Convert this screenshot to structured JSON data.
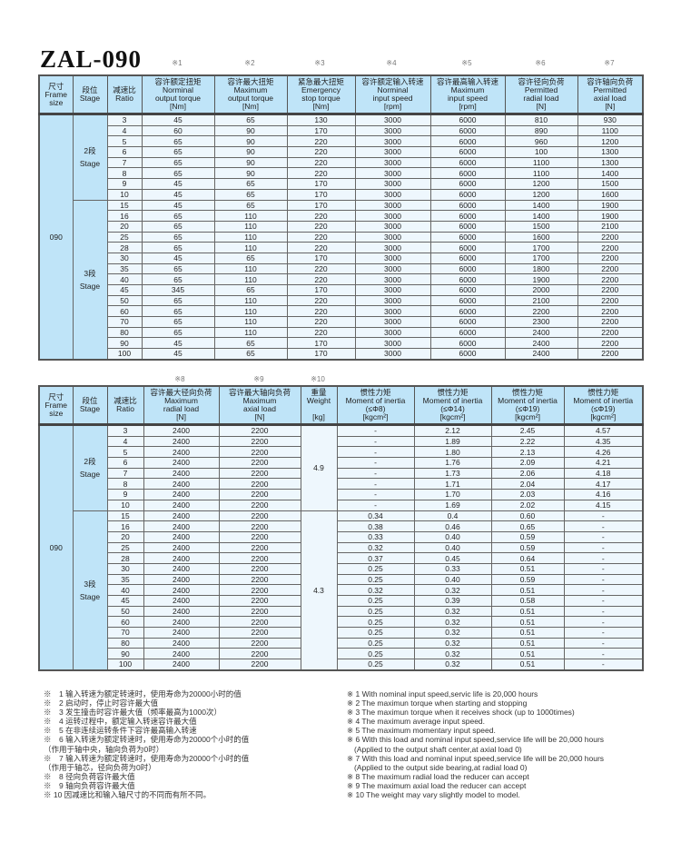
{
  "title": "ZAL-090",
  "table1": {
    "note_marks": [
      "※1",
      "※2",
      "※3",
      "※4",
      "※5",
      "※6",
      "※7"
    ],
    "headers": [
      {
        "zh": "尺寸",
        "en": [
          "Frame",
          "size"
        ]
      },
      {
        "zh": "段位",
        "en": [
          "Stage"
        ]
      },
      {
        "zh": "减速比",
        "en": [
          "Ratio"
        ]
      },
      {
        "zh": "容许额定扭矩",
        "en": [
          "Norminal",
          "output torque",
          "[Nm]"
        ]
      },
      {
        "zh": "容许最大扭矩",
        "en": [
          "Maximum",
          "output torque",
          "[Nm]"
        ]
      },
      {
        "zh": "紧急最大扭矩",
        "en": [
          "Emergency",
          "stop torque",
          "[Nm]"
        ]
      },
      {
        "zh": "容许额定输入转速",
        "en": [
          "Norminal",
          "input speed",
          "[rpm]"
        ]
      },
      {
        "zh": "容许最高输入转速",
        "en": [
          "Maximum",
          "input speed",
          "[rpm]"
        ]
      },
      {
        "zh": "容许径向负荷",
        "en": [
          "Permitted",
          "radial load",
          "[N]"
        ]
      },
      {
        "zh": "容许轴向负荷",
        "en": [
          "Permitted",
          "axial load",
          "[N]"
        ]
      }
    ],
    "frame": "090",
    "stages": [
      {
        "zh": "2段",
        "en": "Stage",
        "rows": 8
      },
      {
        "zh": "3段",
        "en": "Stage",
        "rows": 15
      }
    ],
    "rows": [
      [
        "3",
        "45",
        "65",
        "130",
        "3000",
        "6000",
        "810",
        "930"
      ],
      [
        "4",
        "60",
        "90",
        "170",
        "3000",
        "6000",
        "890",
        "1100"
      ],
      [
        "5",
        "65",
        "90",
        "220",
        "3000",
        "6000",
        "960",
        "1200"
      ],
      [
        "6",
        "65",
        "90",
        "220",
        "3000",
        "6000",
        "100",
        "1300"
      ],
      [
        "7",
        "65",
        "90",
        "220",
        "3000",
        "6000",
        "1100",
        "1300"
      ],
      [
        "8",
        "65",
        "90",
        "220",
        "3000",
        "6000",
        "1100",
        "1400"
      ],
      [
        "9",
        "45",
        "65",
        "170",
        "3000",
        "6000",
        "1200",
        "1500"
      ],
      [
        "10",
        "45",
        "65",
        "170",
        "3000",
        "6000",
        "1200",
        "1600"
      ],
      [
        "15",
        "45",
        "65",
        "170",
        "3000",
        "6000",
        "1400",
        "1900"
      ],
      [
        "16",
        "65",
        "110",
        "220",
        "3000",
        "6000",
        "1400",
        "1900"
      ],
      [
        "20",
        "65",
        "110",
        "220",
        "3000",
        "6000",
        "1500",
        "2100"
      ],
      [
        "25",
        "65",
        "110",
        "220",
        "3000",
        "6000",
        "1600",
        "2200"
      ],
      [
        "28",
        "65",
        "110",
        "220",
        "3000",
        "6000",
        "1700",
        "2200"
      ],
      [
        "30",
        "45",
        "65",
        "170",
        "3000",
        "6000",
        "1700",
        "2200"
      ],
      [
        "35",
        "65",
        "110",
        "220",
        "3000",
        "6000",
        "1800",
        "2200"
      ],
      [
        "40",
        "65",
        "110",
        "220",
        "3000",
        "6000",
        "1900",
        "2200"
      ],
      [
        "45",
        "345",
        "65",
        "170",
        "3000",
        "6000",
        "2000",
        "2200"
      ],
      [
        "50",
        "65",
        "110",
        "220",
        "3000",
        "6000",
        "2100",
        "2200"
      ],
      [
        "60",
        "65",
        "110",
        "220",
        "3000",
        "6000",
        "2200",
        "2200"
      ],
      [
        "70",
        "65",
        "110",
        "220",
        "3000",
        "6000",
        "2300",
        "2200"
      ],
      [
        "80",
        "65",
        "110",
        "220",
        "3000",
        "6000",
        "2400",
        "2200"
      ],
      [
        "90",
        "45",
        "65",
        "170",
        "3000",
        "6000",
        "2400",
        "2200"
      ],
      [
        "100",
        "45",
        "65",
        "170",
        "3000",
        "6000",
        "2400",
        "2200"
      ]
    ]
  },
  "table2": {
    "note_marks": [
      "※8",
      "※9",
      "※10"
    ],
    "headers": [
      {
        "zh": "尺寸",
        "en": [
          "Frame",
          "size"
        ]
      },
      {
        "zh": "段位",
        "en": [
          "Stage"
        ]
      },
      {
        "zh": "减速比",
        "en": [
          "Ratio"
        ]
      },
      {
        "zh": "容许最大径向负荷",
        "en": [
          "Maximum",
          "radial load",
          "[N]"
        ]
      },
      {
        "zh": "容许最大轴向负荷",
        "en": [
          "Maximum",
          "axial load",
          "[N]"
        ]
      },
      {
        "zh": "重量",
        "en": [
          "Weight",
          "",
          "[kg]"
        ]
      },
      {
        "zh": "惯性力矩",
        "en": [
          "Moment of inertia",
          "(≤Φ8)",
          "[kgcm²]"
        ]
      },
      {
        "zh": "惯性力矩",
        "en": [
          "Moment of inertia",
          "(≤Φ14)",
          "[kgcm²]"
        ]
      },
      {
        "zh": "惯性力矩",
        "en": [
          "Moment of inertia",
          "(≤Φ19)",
          "[kgcm²]"
        ]
      },
      {
        "zh": "惯性力矩",
        "en": [
          "Moment of inertia",
          "(≤Φ19)",
          "[kgcm²]"
        ]
      }
    ],
    "frame": "090",
    "stages": [
      {
        "zh": "2段",
        "en": "Stage",
        "rows": 8,
        "weight": "4.9"
      },
      {
        "zh": "3段",
        "en": "Stage",
        "rows": 15,
        "weight": "4.3"
      }
    ],
    "rows": [
      [
        "3",
        "2400",
        "2200",
        "-",
        "2.12",
        "2.45",
        "4.57"
      ],
      [
        "4",
        "2400",
        "2200",
        "-",
        "1.89",
        "2.22",
        "4.35"
      ],
      [
        "5",
        "2400",
        "2200",
        "-",
        "1.80",
        "2.13",
        "4.26"
      ],
      [
        "6",
        "2400",
        "2200",
        "-",
        "1.76",
        "2.09",
        "4.21"
      ],
      [
        "7",
        "2400",
        "2200",
        "-",
        "1.73",
        "2.06",
        "4.18"
      ],
      [
        "8",
        "2400",
        "2200",
        "-",
        "1.71",
        "2.04",
        "4.17"
      ],
      [
        "9",
        "2400",
        "2200",
        "-",
        "1.70",
        "2.03",
        "4.16"
      ],
      [
        "10",
        "2400",
        "2200",
        "-",
        "1.69",
        "2.02",
        "4.15"
      ],
      [
        "15",
        "2400",
        "2200",
        "0.34",
        "0.4",
        "0.60",
        "-"
      ],
      [
        "16",
        "2400",
        "2200",
        "0.38",
        "0.46",
        "0.65",
        "-"
      ],
      [
        "20",
        "2400",
        "2200",
        "0.33",
        "0.40",
        "0.59",
        "-"
      ],
      [
        "25",
        "2400",
        "2200",
        "0.32",
        "0.40",
        "0.59",
        "-"
      ],
      [
        "28",
        "2400",
        "2200",
        "0.37",
        "0.45",
        "0.64",
        "-"
      ],
      [
        "30",
        "2400",
        "2200",
        "0.25",
        "0.33",
        "0.51",
        "-"
      ],
      [
        "35",
        "2400",
        "2200",
        "0.25",
        "0.40",
        "0.59",
        "-"
      ],
      [
        "40",
        "2400",
        "2200",
        "0.32",
        "0.32",
        "0.51",
        "-"
      ],
      [
        "45",
        "2400",
        "2200",
        "0.25",
        "0.39",
        "0.58",
        "-"
      ],
      [
        "50",
        "2400",
        "2200",
        "0.25",
        "0.32",
        "0.51",
        "-"
      ],
      [
        "60",
        "2400",
        "2200",
        "0.25",
        "0.32",
        "0.51",
        "-"
      ],
      [
        "70",
        "2400",
        "2200",
        "0.25",
        "0.32",
        "0.51",
        "-"
      ],
      [
        "80",
        "2400",
        "2200",
        "0.25",
        "0.32",
        "0.51",
        "-"
      ],
      [
        "90",
        "2400",
        "2200",
        "0.25",
        "0.32",
        "0.51",
        "-"
      ],
      [
        "100",
        "2400",
        "2200",
        "0.25",
        "0.32",
        "0.51",
        "-"
      ]
    ]
  },
  "notes_zh": [
    "※　1 输入转速为额定转速时，使用寿命为20000小时的值",
    "※　2 启动时，停止时容许最大值",
    "※　3 发生撞击时容许最大值（频率最高为1000次）",
    "※　4 运转过程中，额定输入转速容许最大值",
    "※　5 在非连续运转条件下容许最高输入转速",
    "※　6 输入转速为额定转速时，使用寿命为20000个小时的值",
    "（作用于轴中央，轴向负荷为0时）",
    "※　7 输入转速为额定转速时，使用寿命为20000个小时的值",
    "（作用于轴芯，径向负荷为0时）",
    "※　8 径向负荷容许最大值",
    "※　9 轴向负荷容许最大值",
    "※ 10 因减速比和输入轴尺寸的不同而有所不同。"
  ],
  "notes_en": [
    "※ 1 With nominal input speed,servic life is 20,000 hours",
    "※ 2 The maximun torque when starting and stopping",
    "※ 3 The maximun torque when it receives shock (up to 1000times)",
    "※ 4 The maximum average input speed.",
    "※ 5 The maximum momentary input speed.",
    "※ 6 With this load and nominal input speed,service life will be 20,000 hours",
    "(Applied to the output shaft center,at axial load 0)",
    "※ 7 With this load and nominal input speed,service life will be 20,000 hours",
    "(Applied to the output side bearing,at radial load 0)",
    "※ 8 The maximum radial load the reducer can accept",
    "※ 9 The maximum axial load the reducer can accept",
    "※ 10 The weight may vary  slightly  model to model."
  ],
  "colors": {
    "header_bg": "#bfe4f8",
    "cell_bg": "#eef7fd",
    "border": "#555555"
  }
}
